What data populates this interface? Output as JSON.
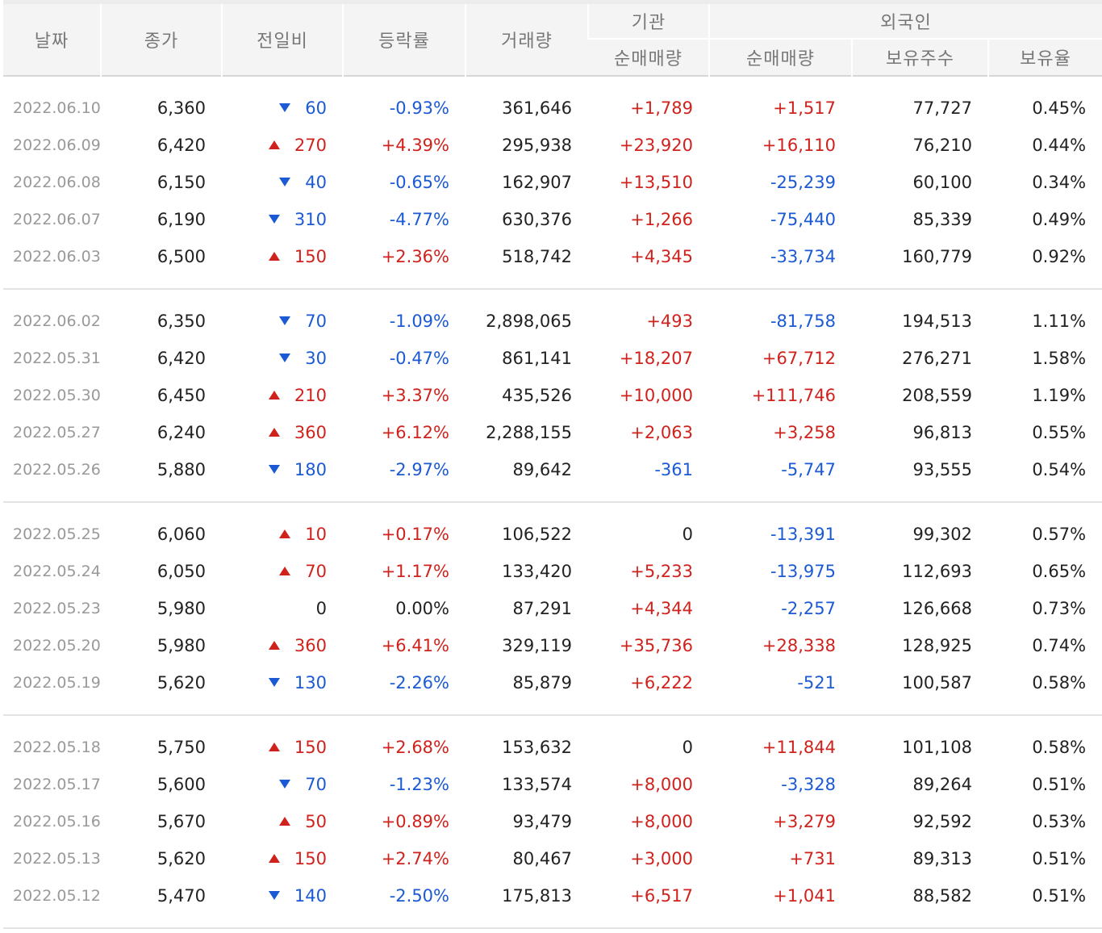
{
  "header": {
    "date": "날짜",
    "close": "종가",
    "diff": "전일비",
    "rate": "등락률",
    "volume": "거래량",
    "institution": "기관",
    "foreign": "외국인",
    "inst_net": "순매매량",
    "foreign_net": "순매매량",
    "foreign_hold": "보유주수",
    "foreign_ratio": "보유율"
  },
  "colors": {
    "up": "#d0221d",
    "down": "#1b5ad4"
  },
  "groups": [
    {
      "rows": [
        {
          "date": "2022.06.10",
          "close": "6,360",
          "dir": "down",
          "diff": "60",
          "rate": "-0.93%",
          "volume": "361,646",
          "inst": "+1,789",
          "inst_dir": "up",
          "fnet": "+1,517",
          "fnet_dir": "up",
          "fhold": "77,727",
          "fratio": "0.45%"
        },
        {
          "date": "2022.06.09",
          "close": "6,420",
          "dir": "up",
          "diff": "270",
          "rate": "+4.39%",
          "volume": "295,938",
          "inst": "+23,920",
          "inst_dir": "up",
          "fnet": "+16,110",
          "fnet_dir": "up",
          "fhold": "76,210",
          "fratio": "0.44%"
        },
        {
          "date": "2022.06.08",
          "close": "6,150",
          "dir": "down",
          "diff": "40",
          "rate": "-0.65%",
          "volume": "162,907",
          "inst": "+13,510",
          "inst_dir": "up",
          "fnet": "-25,239",
          "fnet_dir": "down",
          "fhold": "60,100",
          "fratio": "0.34%"
        },
        {
          "date": "2022.06.07",
          "close": "6,190",
          "dir": "down",
          "diff": "310",
          "rate": "-4.77%",
          "volume": "630,376",
          "inst": "+1,266",
          "inst_dir": "up",
          "fnet": "-75,440",
          "fnet_dir": "down",
          "fhold": "85,339",
          "fratio": "0.49%"
        },
        {
          "date": "2022.06.03",
          "close": "6,500",
          "dir": "up",
          "diff": "150",
          "rate": "+2.36%",
          "volume": "518,742",
          "inst": "+4,345",
          "inst_dir": "up",
          "fnet": "-33,734",
          "fnet_dir": "down",
          "fhold": "160,779",
          "fratio": "0.92%"
        }
      ]
    },
    {
      "rows": [
        {
          "date": "2022.06.02",
          "close": "6,350",
          "dir": "down",
          "diff": "70",
          "rate": "-1.09%",
          "volume": "2,898,065",
          "inst": "+493",
          "inst_dir": "up",
          "fnet": "-81,758",
          "fnet_dir": "down",
          "fhold": "194,513",
          "fratio": "1.11%"
        },
        {
          "date": "2022.05.31",
          "close": "6,420",
          "dir": "down",
          "diff": "30",
          "rate": "-0.47%",
          "volume": "861,141",
          "inst": "+18,207",
          "inst_dir": "up",
          "fnet": "+67,712",
          "fnet_dir": "up",
          "fhold": "276,271",
          "fratio": "1.58%"
        },
        {
          "date": "2022.05.30",
          "close": "6,450",
          "dir": "up",
          "diff": "210",
          "rate": "+3.37%",
          "volume": "435,526",
          "inst": "+10,000",
          "inst_dir": "up",
          "fnet": "+111,746",
          "fnet_dir": "up",
          "fhold": "208,559",
          "fratio": "1.19%"
        },
        {
          "date": "2022.05.27",
          "close": "6,240",
          "dir": "up",
          "diff": "360",
          "rate": "+6.12%",
          "volume": "2,288,155",
          "inst": "+2,063",
          "inst_dir": "up",
          "fnet": "+3,258",
          "fnet_dir": "up",
          "fhold": "96,813",
          "fratio": "0.55%"
        },
        {
          "date": "2022.05.26",
          "close": "5,880",
          "dir": "down",
          "diff": "180",
          "rate": "-2.97%",
          "volume": "89,642",
          "inst": "-361",
          "inst_dir": "down",
          "fnet": "-5,747",
          "fnet_dir": "down",
          "fhold": "93,555",
          "fratio": "0.54%"
        }
      ]
    },
    {
      "rows": [
        {
          "date": "2022.05.25",
          "close": "6,060",
          "dir": "up",
          "diff": "10",
          "rate": "+0.17%",
          "volume": "106,522",
          "inst": "0",
          "inst_dir": "none",
          "fnet": "-13,391",
          "fnet_dir": "down",
          "fhold": "99,302",
          "fratio": "0.57%"
        },
        {
          "date": "2022.05.24",
          "close": "6,050",
          "dir": "up",
          "diff": "70",
          "rate": "+1.17%",
          "volume": "133,420",
          "inst": "+5,233",
          "inst_dir": "up",
          "fnet": "-13,975",
          "fnet_dir": "down",
          "fhold": "112,693",
          "fratio": "0.65%"
        },
        {
          "date": "2022.05.23",
          "close": "5,980",
          "dir": "none",
          "diff": "0",
          "rate": "0.00%",
          "volume": "87,291",
          "inst": "+4,344",
          "inst_dir": "up",
          "fnet": "-2,257",
          "fnet_dir": "down",
          "fhold": "126,668",
          "fratio": "0.73%"
        },
        {
          "date": "2022.05.20",
          "close": "5,980",
          "dir": "up",
          "diff": "360",
          "rate": "+6.41%",
          "volume": "329,119",
          "inst": "+35,736",
          "inst_dir": "up",
          "fnet": "+28,338",
          "fnet_dir": "up",
          "fhold": "128,925",
          "fratio": "0.74%"
        },
        {
          "date": "2022.05.19",
          "close": "5,620",
          "dir": "down",
          "diff": "130",
          "rate": "-2.26%",
          "volume": "85,879",
          "inst": "+6,222",
          "inst_dir": "up",
          "fnet": "-521",
          "fnet_dir": "down",
          "fhold": "100,587",
          "fratio": "0.58%"
        }
      ]
    },
    {
      "rows": [
        {
          "date": "2022.05.18",
          "close": "5,750",
          "dir": "up",
          "diff": "150",
          "rate": "+2.68%",
          "volume": "153,632",
          "inst": "0",
          "inst_dir": "none",
          "fnet": "+11,844",
          "fnet_dir": "up",
          "fhold": "101,108",
          "fratio": "0.58%"
        },
        {
          "date": "2022.05.17",
          "close": "5,600",
          "dir": "down",
          "diff": "70",
          "rate": "-1.23%",
          "volume": "133,574",
          "inst": "+8,000",
          "inst_dir": "up",
          "fnet": "-3,328",
          "fnet_dir": "down",
          "fhold": "89,264",
          "fratio": "0.51%"
        },
        {
          "date": "2022.05.16",
          "close": "5,670",
          "dir": "up",
          "diff": "50",
          "rate": "+0.89%",
          "volume": "93,479",
          "inst": "+8,000",
          "inst_dir": "up",
          "fnet": "+3,279",
          "fnet_dir": "up",
          "fhold": "92,592",
          "fratio": "0.53%"
        },
        {
          "date": "2022.05.13",
          "close": "5,620",
          "dir": "up",
          "diff": "150",
          "rate": "+2.74%",
          "volume": "80,467",
          "inst": "+3,000",
          "inst_dir": "up",
          "fnet": "+731",
          "fnet_dir": "up",
          "fhold": "89,313",
          "fratio": "0.51%"
        },
        {
          "date": "2022.05.12",
          "close": "5,470",
          "dir": "down",
          "diff": "140",
          "rate": "-2.50%",
          "volume": "175,813",
          "inst": "+6,517",
          "inst_dir": "up",
          "fnet": "+1,041",
          "fnet_dir": "up",
          "fhold": "88,582",
          "fratio": "0.51%"
        }
      ]
    }
  ]
}
